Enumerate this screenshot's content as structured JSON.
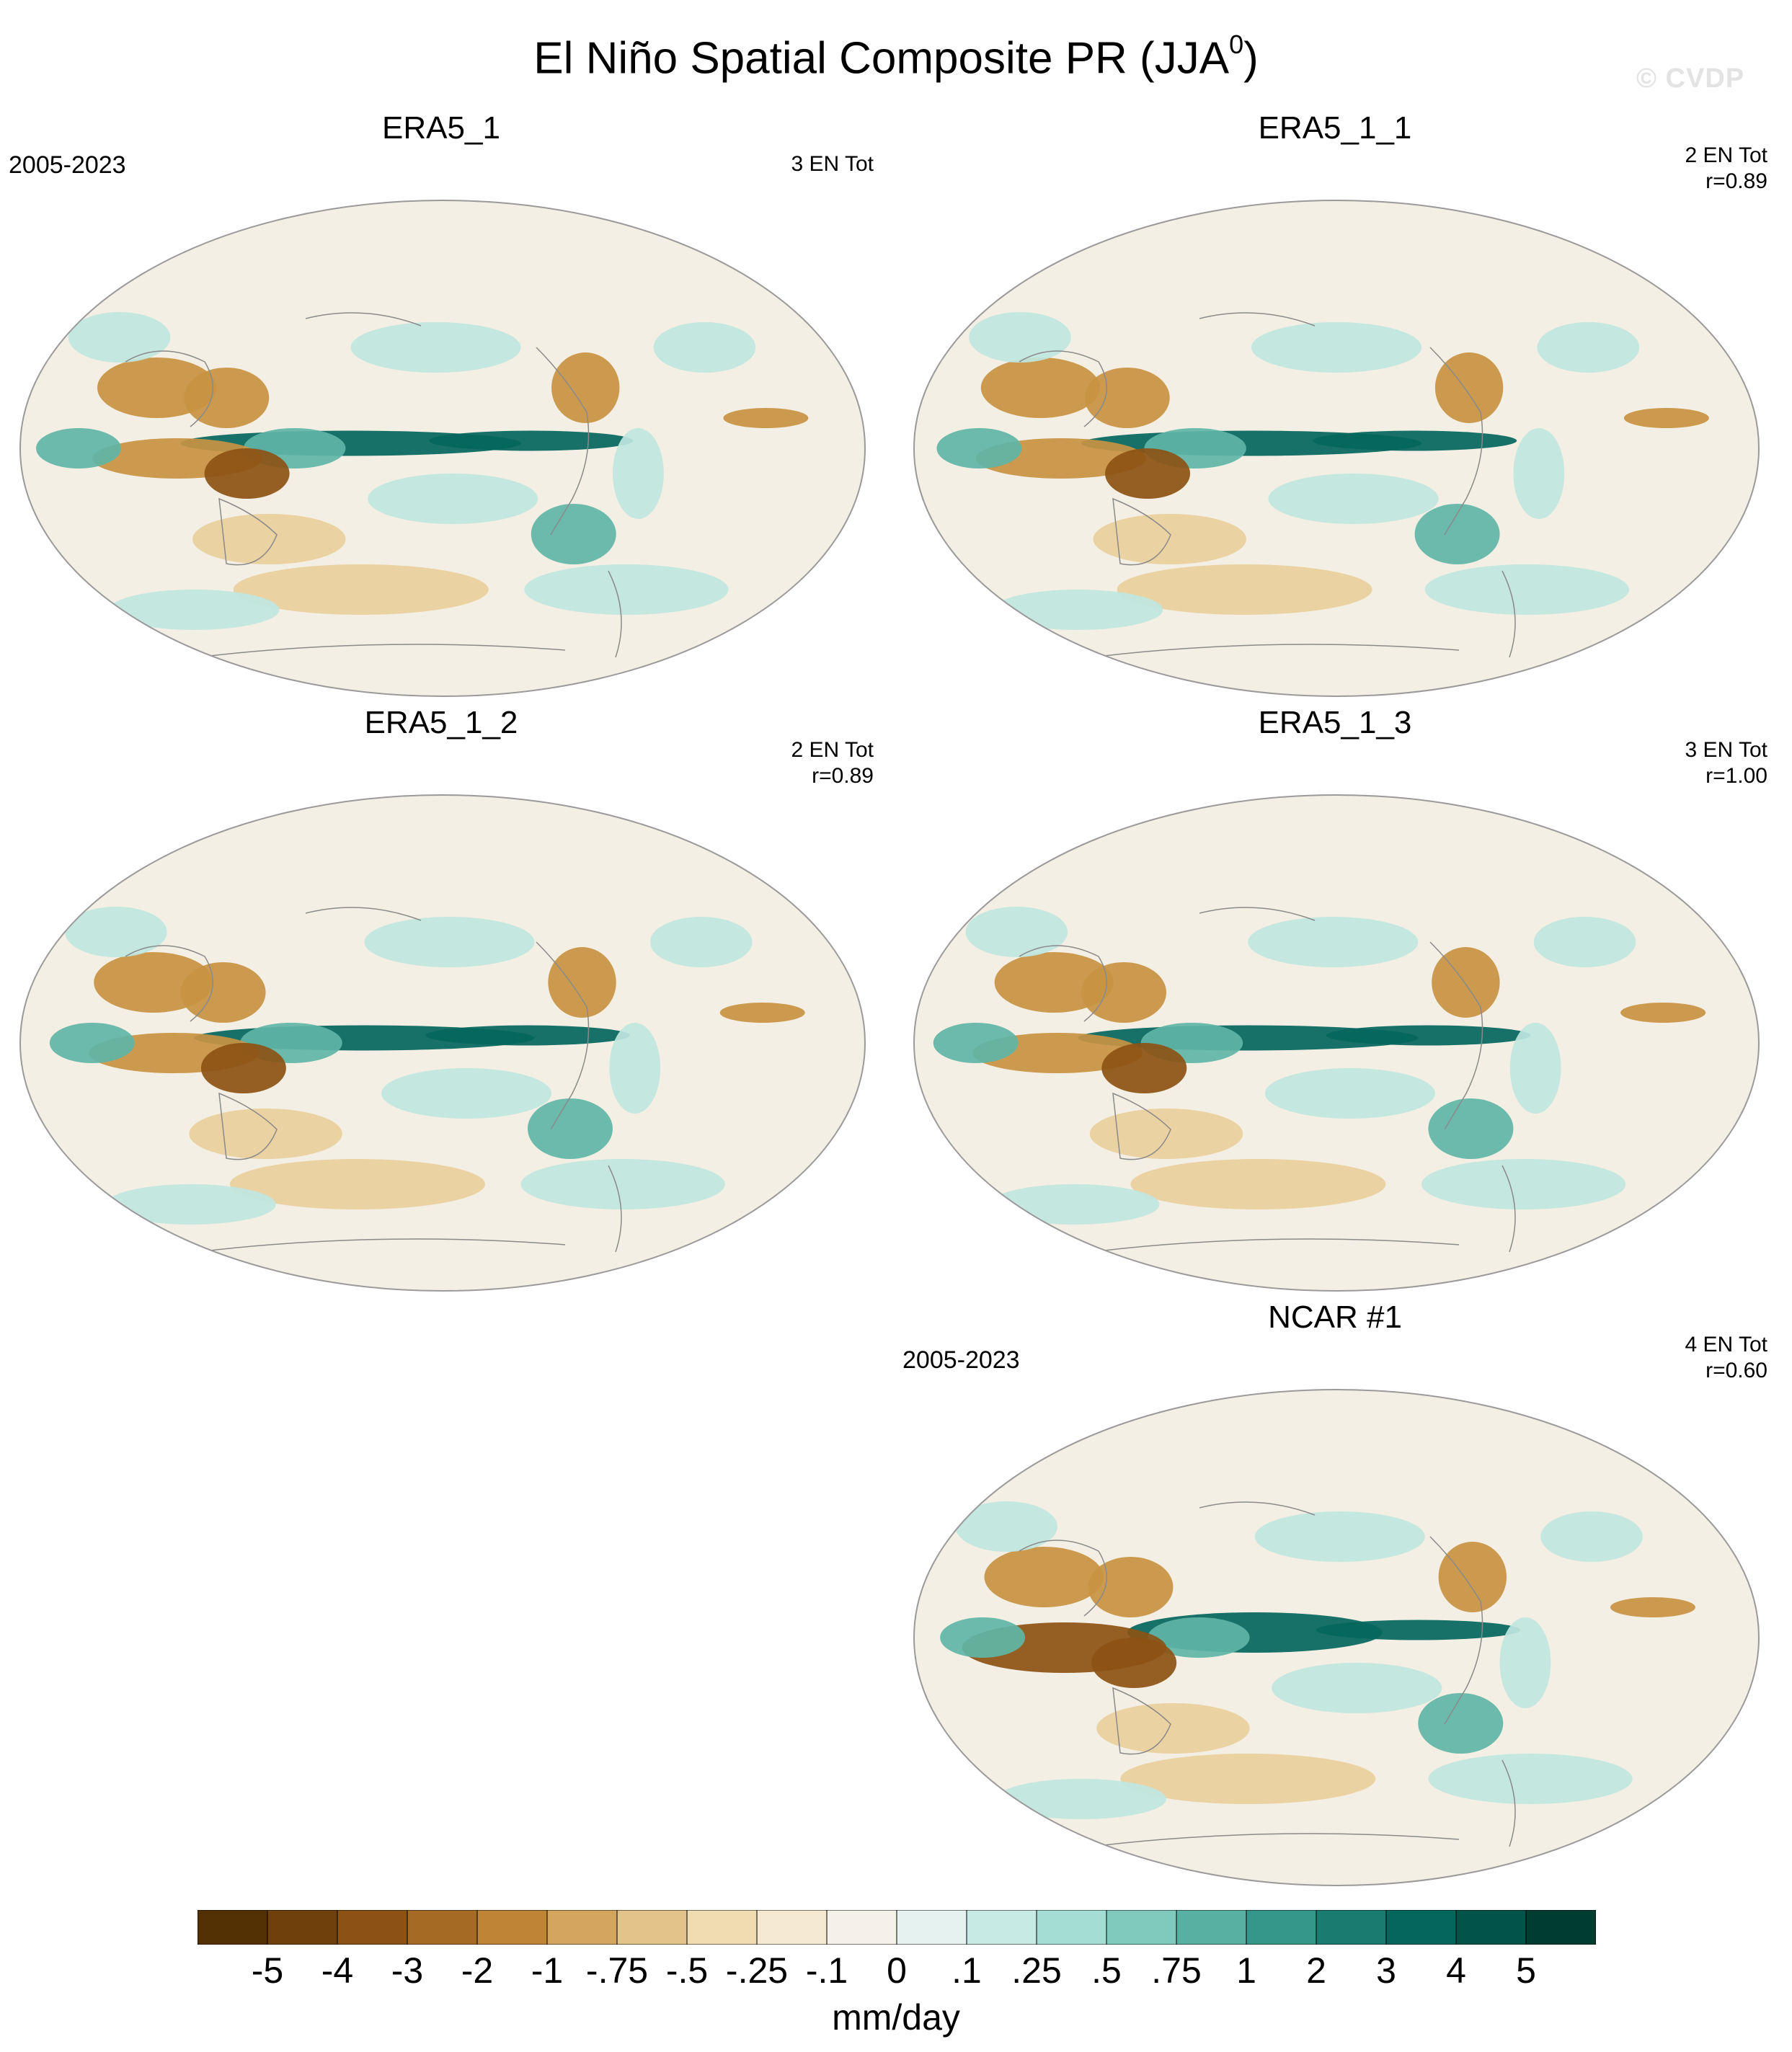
{
  "title": "El Niño Spatial Composite PR (JJA",
  "title_sup": "0",
  "title_close": ")",
  "watermark": "© CVDP",
  "panels": [
    {
      "title": "ERA5_1",
      "period": "2005-2023",
      "tot": "3 EN Tot",
      "r": ""
    },
    {
      "title": "ERA5_1_1",
      "period": "",
      "tot": "2 EN Tot",
      "r": "r=0.89"
    },
    {
      "title": "ERA5_1_2",
      "period": "",
      "tot": "2 EN Tot",
      "r": "r=0.89"
    },
    {
      "title": "ERA5_1_3",
      "period": "",
      "tot": "3 EN Tot",
      "r": "r=1.00"
    },
    {
      "title": "NCAR #1",
      "period": "2005-2023",
      "tot": "4 EN Tot",
      "r": "r=0.60"
    }
  ],
  "colorbar": {
    "units": "mm/day",
    "tick_labels": [
      "-5",
      "-4",
      "-3",
      "-2",
      "-1",
      "-.75",
      "-.5",
      "-.25",
      "-.1",
      "0",
      ".1",
      ".25",
      ".5",
      ".75",
      "1",
      "2",
      "3",
      "4",
      "5"
    ],
    "colors": [
      "#543005",
      "#6f3f0c",
      "#8c5213",
      "#a56a24",
      "#bf8535",
      "#d3a55e",
      "#e3c389",
      "#efdcb0",
      "#f5ead1",
      "#f5f1e9",
      "#e6f2f0",
      "#c7ebe4",
      "#a4ddd3",
      "#7fcabd",
      "#58b0a2",
      "#35968a",
      "#1a7c71",
      "#04665d",
      "#02544a",
      "#003c30"
    ],
    "map_colors": {
      "background": "#f4efe4",
      "outline": "#9a9a9a",
      "coast": "#8a8a8a",
      "dry_strong": "#8c5213",
      "dry_mod": "#c89242",
      "dry_weak": "#e8cf9c",
      "wet_weak": "#bfe6df",
      "wet_mod": "#5fb5a7",
      "wet_strong": "#04665d"
    }
  }
}
